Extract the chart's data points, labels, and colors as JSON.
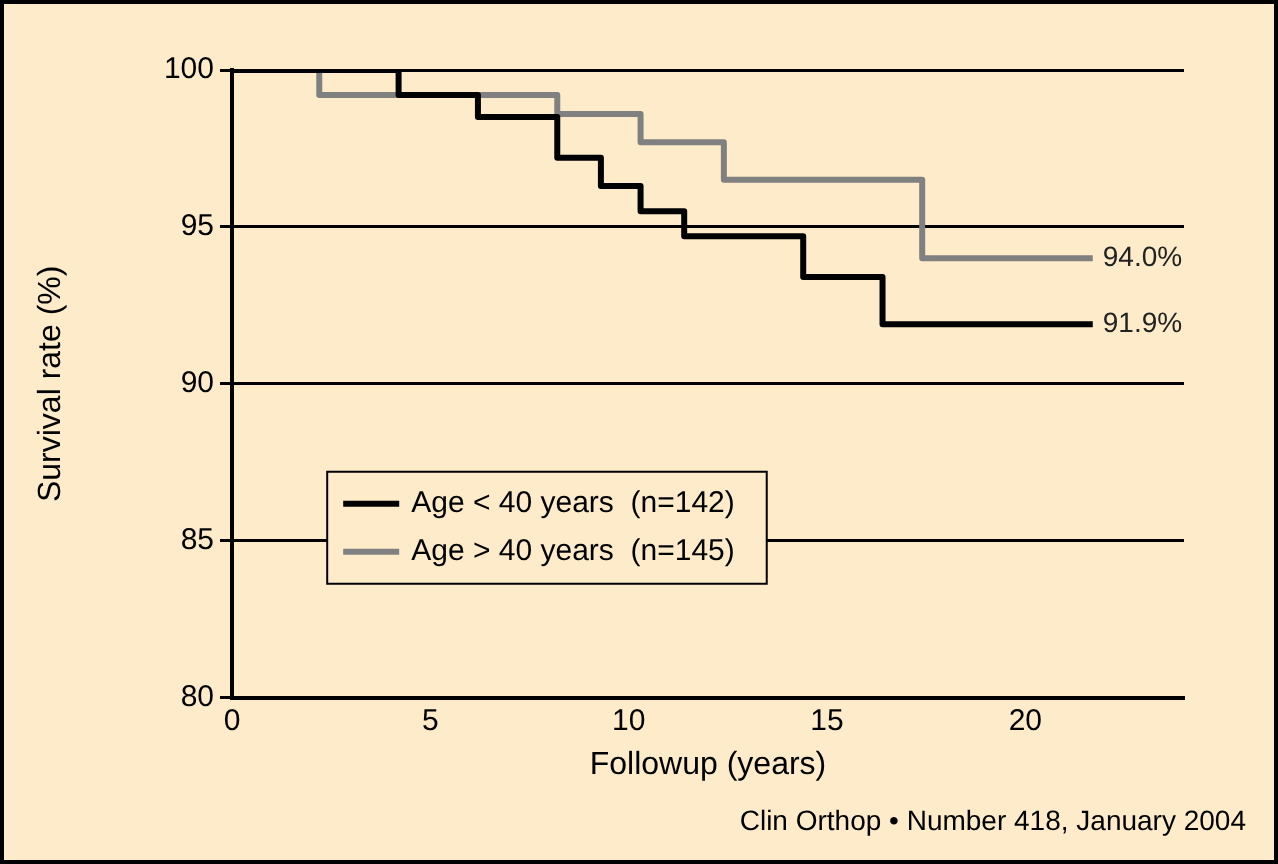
{
  "chart_data": {
    "type": "step",
    "xlabel": "Followup (years)",
    "ylabel": "Survival rate (%)",
    "xlim": [
      0,
      24
    ],
    "xticks": [
      0,
      5,
      10,
      15,
      20
    ],
    "ylim": [
      80,
      100
    ],
    "yticks": [
      80,
      85,
      90,
      95,
      100
    ],
    "grid": "y",
    "legend": "center left",
    "marker": "none",
    "line_style": "solid",
    "annotations": [
      "Clin Orthop • Number 418, January 2004"
    ],
    "series": [
      {
        "name": "Age < 40 years  (n=142)",
        "color": "#000000",
        "x": [
          0,
          4.2,
          6.2,
          8.2,
          9.3,
          10.3,
          11.4,
          14.4,
          16.4,
          21.7
        ],
        "values": [
          100,
          99.2,
          98.5,
          97.2,
          96.3,
          95.5,
          94.7,
          93.4,
          91.9,
          91.9
        ],
        "value_labels": [
          null,
          null,
          null,
          null,
          null,
          null,
          null,
          null,
          null,
          "91.9%"
        ]
      },
      {
        "name": "Age > 40 years  (n=145)",
        "color": "#808080",
        "x": [
          0,
          2.2,
          8.2,
          10.3,
          12.4,
          17.4,
          21.7
        ],
        "values": [
          100,
          99.2,
          98.6,
          97.7,
          96.5,
          94.0,
          94.0
        ],
        "value_labels": [
          null,
          null,
          null,
          null,
          null,
          null,
          "94.0%"
        ]
      }
    ]
  }
}
